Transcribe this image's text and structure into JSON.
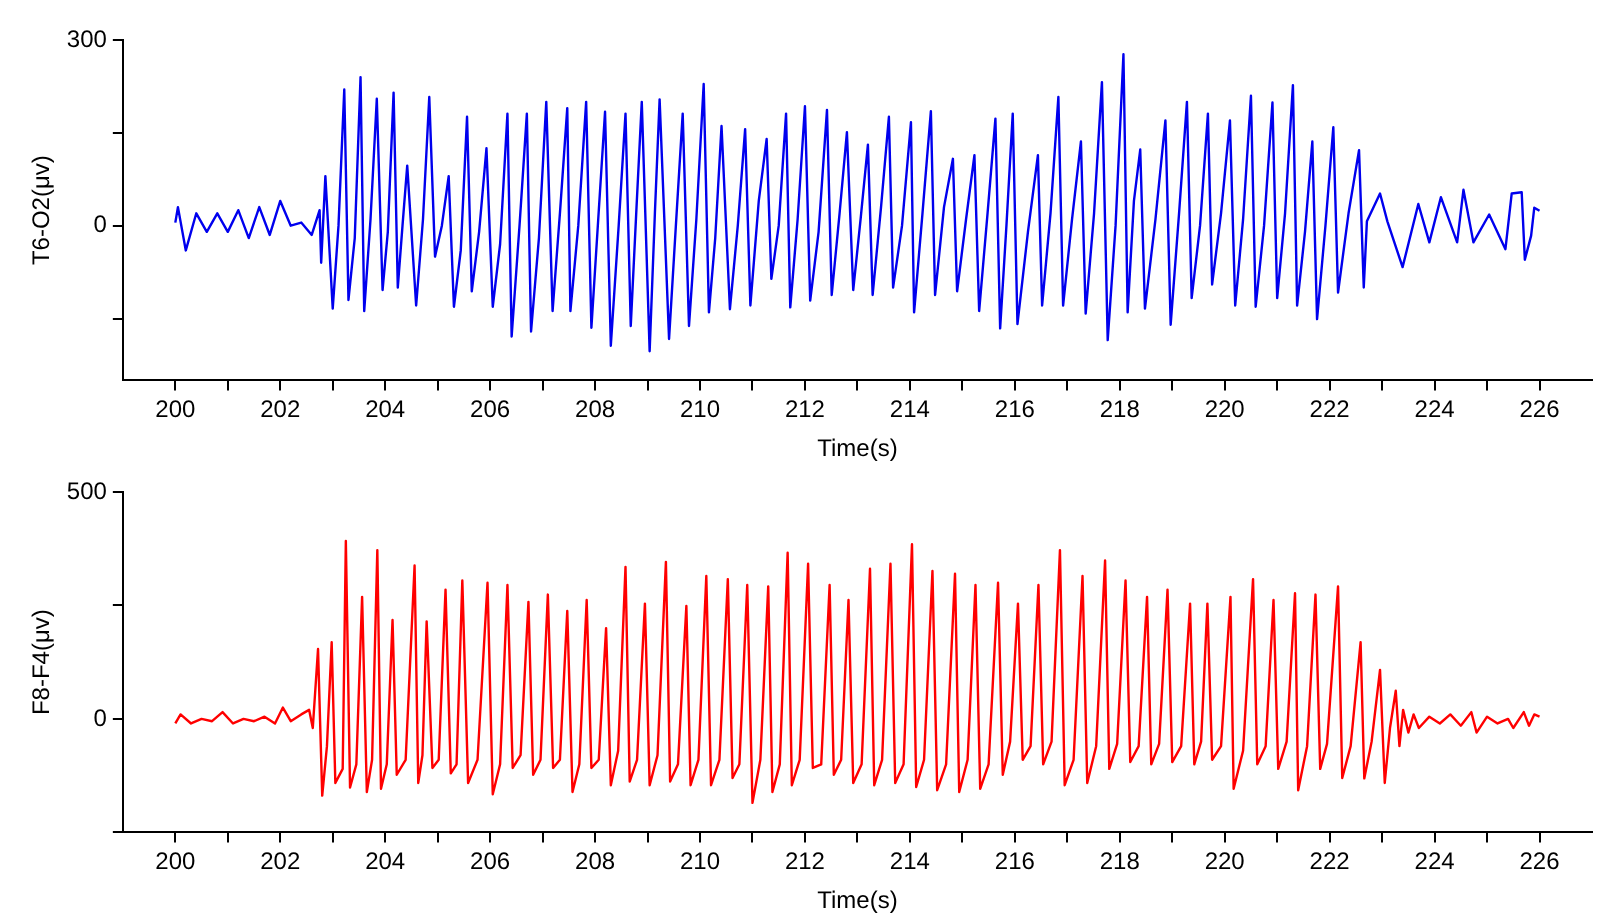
{
  "chart_data": [
    {
      "type": "line",
      "xlabel": "Time(s)",
      "ylabel": "T6-O2(μv)",
      "color": "#0000ee",
      "xlim": [
        199,
        227
      ],
      "xticks": [
        200,
        {
          "value": 201,
          "label": null
        },
        202,
        {
          "value": 203,
          "label": null
        },
        204,
        {
          "value": 205,
          "label": null
        },
        206,
        {
          "value": 207,
          "label": null
        },
        208,
        {
          "value": 209,
          "label": null
        },
        210,
        {
          "value": 211,
          "label": null
        },
        212,
        {
          "value": 213,
          "label": null
        },
        214,
        {
          "value": 215,
          "label": null
        },
        216,
        {
          "value": 217,
          "label": null
        },
        218,
        {
          "value": 219,
          "label": null
        },
        220,
        {
          "value": 221,
          "label": null
        },
        222,
        {
          "value": 223,
          "label": null
        },
        224,
        {
          "value": 225,
          "label": null
        },
        226
      ],
      "ylim": [
        -250,
        300
      ],
      "yticks": [
        {
          "value": -150,
          "label": null
        },
        0,
        {
          "value": 150,
          "label": null
        },
        300
      ],
      "x": [
        200,
        200.05,
        200.2,
        200.4,
        200.6,
        200.8,
        201,
        201.2,
        201.4,
        201.6,
        201.8,
        202,
        202.2,
        202.4,
        202.6,
        202.75,
        202.78,
        202.86,
        203.0,
        203.11,
        203.22,
        203.3,
        203.42,
        203.53,
        203.6,
        203.72,
        203.84,
        203.95,
        204.05,
        204.16,
        204.24,
        204.33,
        204.42,
        204.59,
        204.72,
        204.84,
        204.95,
        205.08,
        205.21,
        205.31,
        205.44,
        205.56,
        205.65,
        205.79,
        205.93,
        206.05,
        206.19,
        206.33,
        206.41,
        206.56,
        206.7,
        206.78,
        206.93,
        207.07,
        207.19,
        207.33,
        207.47,
        207.53,
        207.68,
        207.83,
        207.93,
        208.06,
        208.19,
        208.3,
        208.45,
        208.58,
        208.68,
        208.79,
        208.89,
        209.04,
        209.14,
        209.23,
        209.41,
        209.54,
        209.67,
        209.79,
        209.93,
        210.07,
        210.17,
        210.29,
        210.41,
        210.57,
        210.72,
        210.86,
        210.96,
        211.12,
        211.27,
        211.36,
        211.5,
        211.64,
        211.72,
        211.86,
        212.0,
        212.1,
        212.26,
        212.42,
        212.51,
        212.66,
        212.8,
        212.92,
        213.06,
        213.2,
        213.29,
        213.45,
        213.6,
        213.68,
        213.85,
        214.02,
        214.08,
        214.24,
        214.4,
        214.48,
        214.65,
        214.82,
        214.9,
        215.07,
        215.23,
        215.32,
        215.48,
        215.63,
        215.72,
        215.84,
        215.96,
        216.05,
        216.25,
        216.44,
        216.52,
        216.68,
        216.83,
        216.92,
        217.09,
        217.26,
        217.35,
        217.51,
        217.66,
        217.77,
        217.92,
        218.07,
        218.15,
        218.27,
        218.39,
        218.48,
        218.68,
        218.87,
        218.97,
        219.13,
        219.28,
        219.37,
        219.53,
        219.68,
        219.76,
        219.93,
        220.1,
        220.2,
        220.35,
        220.5,
        220.59,
        220.75,
        220.91,
        221.0,
        221.15,
        221.3,
        221.38,
        221.53,
        221.67,
        221.76,
        221.92,
        222.07,
        222.16,
        222.36,
        222.56,
        222.65,
        222.71,
        222.96,
        223.1,
        223.39,
        223.69,
        223.9,
        224.12,
        224.43,
        224.55,
        224.74,
        225.04,
        225.35,
        225.47,
        225.66,
        225.72,
        225.84,
        225.9,
        226
      ],
      "values": [
        5,
        30,
        -40,
        20,
        -10,
        20,
        -10,
        25,
        -20,
        30,
        -15,
        40,
        0,
        5,
        -15,
        25,
        -60,
        80,
        -134,
        0,
        220,
        -120,
        -20,
        240,
        -138,
        10,
        205,
        -104,
        -10,
        215,
        -100,
        0,
        97,
        -129,
        10,
        208,
        -50,
        0,
        80,
        -131,
        -40,
        176,
        -106,
        -10,
        125,
        -131,
        -30,
        181,
        -179,
        0,
        181,
        -171,
        -20,
        200,
        -138,
        20,
        190,
        -138,
        0,
        200,
        -165,
        10,
        184,
        -194,
        0,
        181,
        -162,
        30,
        200,
        -203,
        20,
        204,
        -183,
        0,
        181,
        -162,
        10,
        229,
        -140,
        -20,
        161,
        -135,
        0,
        156,
        -129,
        40,
        140,
        -86,
        0,
        181,
        -132,
        10,
        193,
        -121,
        -10,
        187,
        -112,
        20,
        151,
        -104,
        10,
        131,
        -112,
        30,
        176,
        -100,
        0,
        167,
        -140,
        20,
        185,
        -112,
        30,
        108,
        -106,
        10,
        114,
        -138,
        20,
        173,
        -166,
        0,
        181,
        -159,
        -10,
        114,
        -129,
        20,
        208,
        -129,
        10,
        136,
        -142,
        20,
        232,
        -185,
        0,
        277,
        -140,
        40,
        123,
        -134,
        10,
        170,
        -160,
        20,
        200,
        -117,
        0,
        181,
        -95,
        20,
        170,
        -129,
        10,
        210,
        -131,
        0,
        199,
        -117,
        20,
        227,
        -129,
        -10,
        136,
        -151,
        0,
        159,
        -108,
        20,
        122,
        -100,
        7,
        52,
        7,
        -67,
        35,
        -27,
        46,
        -27,
        58,
        -27,
        18,
        -38,
        52,
        54,
        -55,
        -16,
        29,
        24
      ]
    },
    {
      "type": "line",
      "xlabel": "Time(s)",
      "ylabel": "F8-F4(μv)",
      "color": "#ff0000",
      "xlim": [
        199,
        227
      ],
      "xticks": [
        200,
        {
          "value": 201,
          "label": null
        },
        202,
        {
          "value": 203,
          "label": null
        },
        204,
        {
          "value": 205,
          "label": null
        },
        206,
        {
          "value": 207,
          "label": null
        },
        208,
        {
          "value": 209,
          "label": null
        },
        210,
        {
          "value": 211,
          "label": null
        },
        212,
        {
          "value": 213,
          "label": null
        },
        214,
        {
          "value": 215,
          "label": null
        },
        216,
        {
          "value": 217,
          "label": null
        },
        218,
        {
          "value": 219,
          "label": null
        },
        220,
        {
          "value": 221,
          "label": null
        },
        222,
        {
          "value": 223,
          "label": null
        },
        224,
        {
          "value": 225,
          "label": null
        },
        226
      ],
      "ylim": [
        -250,
        500
      ],
      "yticks": [
        {
          "value": -250,
          "label": null
        },
        0,
        {
          "value": 250,
          "label": null
        },
        500
      ],
      "x": [
        200,
        200.1,
        200.3,
        200.5,
        200.7,
        200.9,
        201.1,
        201.3,
        201.5,
        201.7,
        201.9,
        202.05,
        202.2,
        202.4,
        202.55,
        202.62,
        202.72,
        202.8,
        202.89,
        202.98,
        203.05,
        203.19,
        203.25,
        203.33,
        203.45,
        203.56,
        203.65,
        203.75,
        203.85,
        203.92,
        204.03,
        204.14,
        204.22,
        204.39,
        204.56,
        204.63,
        204.71,
        204.79,
        204.9,
        205.02,
        205.15,
        205.25,
        205.36,
        205.47,
        205.58,
        205.76,
        205.95,
        206.05,
        206.19,
        206.33,
        206.43,
        206.58,
        206.73,
        206.82,
        206.96,
        207.1,
        207.2,
        207.33,
        207.47,
        207.57,
        207.7,
        207.84,
        207.93,
        208.07,
        208.21,
        208.3,
        208.44,
        208.58,
        208.66,
        208.8,
        208.95,
        209.04,
        209.19,
        209.35,
        209.43,
        209.58,
        209.74,
        209.82,
        209.97,
        210.12,
        210.21,
        210.37,
        210.53,
        210.62,
        210.75,
        210.9,
        211.0,
        211.15,
        211.3,
        211.38,
        211.52,
        211.67,
        211.75,
        211.9,
        212.06,
        212.15,
        212.31,
        212.47,
        212.55,
        212.69,
        212.83,
        212.92,
        213.08,
        213.24,
        213.32,
        213.47,
        213.63,
        213.72,
        213.88,
        214.04,
        214.12,
        214.27,
        214.43,
        214.52,
        214.69,
        214.86,
        214.94,
        215.1,
        215.25,
        215.34,
        215.5,
        215.68,
        215.77,
        215.91,
        216.06,
        216.15,
        216.3,
        216.45,
        216.54,
        216.7,
        216.86,
        216.95,
        217.12,
        217.29,
        217.38,
        217.55,
        217.72,
        217.8,
        217.95,
        218.11,
        218.2,
        218.36,
        218.52,
        218.6,
        218.75,
        218.91,
        219.0,
        219.17,
        219.34,
        219.42,
        219.55,
        219.67,
        219.76,
        219.93,
        220.11,
        220.17,
        220.35,
        220.54,
        220.62,
        220.78,
        220.93,
        221.02,
        221.18,
        221.34,
        221.4,
        221.57,
        221.73,
        221.82,
        221.95,
        222.16,
        222.24,
        222.4,
        222.59,
        222.66,
        222.8,
        222.96,
        223.05,
        223.15,
        223.26,
        223.33,
        223.4,
        223.5,
        223.6,
        223.7,
        223.9,
        224.1,
        224.3,
        224.5,
        224.7,
        224.8,
        225,
        225.2,
        225.4,
        225.5,
        225.7,
        225.8,
        225.9,
        226
      ],
      "values": [
        -10,
        10,
        -10,
        0,
        -5,
        15,
        -10,
        0,
        -5,
        5,
        -10,
        25,
        -5,
        10,
        20,
        -20,
        154,
        -169,
        -60,
        169,
        -141,
        -110,
        392,
        -151,
        -100,
        269,
        -161,
        -90,
        372,
        -154,
        -100,
        218,
        -123,
        -90,
        338,
        -141,
        -80,
        215,
        -108,
        -90,
        285,
        -120,
        -100,
        305,
        -141,
        -90,
        300,
        -166,
        -100,
        295,
        -108,
        -80,
        258,
        -123,
        -90,
        274,
        -108,
        -90,
        238,
        -161,
        -100,
        262,
        -108,
        -90,
        200,
        -146,
        -70,
        335,
        -138,
        -90,
        254,
        -146,
        -80,
        346,
        -138,
        -100,
        249,
        -146,
        -90,
        315,
        -146,
        -90,
        308,
        -130,
        -100,
        295,
        -185,
        -90,
        292,
        -161,
        -100,
        366,
        -146,
        -90,
        342,
        -108,
        -100,
        295,
        -123,
        -90,
        262,
        -141,
        -100,
        331,
        -146,
        -90,
        342,
        -141,
        -100,
        385,
        -150,
        -90,
        326,
        -157,
        -100,
        320,
        -161,
        -90,
        295,
        -154,
        -100,
        300,
        -123,
        -50,
        254,
        -90,
        -60,
        295,
        -100,
        -50,
        372,
        -146,
        -90,
        315,
        -141,
        -60,
        349,
        -110,
        -55,
        305,
        -95,
        -60,
        269,
        -100,
        -55,
        285,
        -95,
        -60,
        254,
        -100,
        -50,
        254,
        -90,
        -60,
        269,
        -154,
        -70,
        308,
        -100,
        -60,
        262,
        -110,
        -50,
        277,
        -157,
        -60,
        274,
        -110,
        -55,
        292,
        -130,
        -60,
        169,
        -131,
        -50,
        108,
        -141,
        -20,
        62,
        -60,
        20,
        -30,
        10,
        -20,
        5,
        -10,
        10,
        -15,
        15,
        -30,
        5,
        -10,
        0,
        -20,
        15,
        -15,
        10,
        5
      ]
    }
  ]
}
